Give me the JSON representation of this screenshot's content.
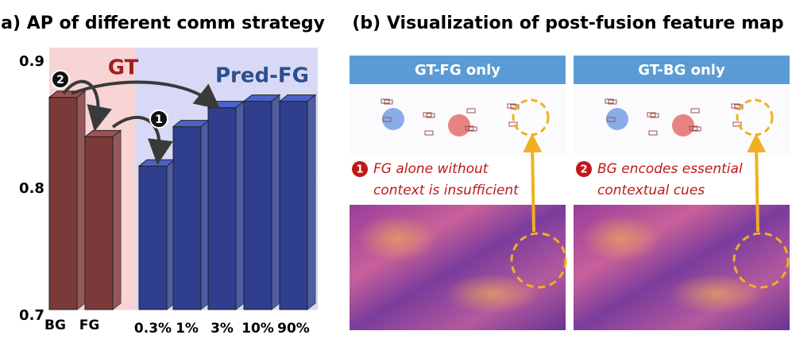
{
  "chart_data": {
    "type": "bar",
    "title": "(a) AP of different comm strategy",
    "categories": [
      "BG",
      "FG",
      "0.3%",
      "1%",
      "3%",
      "10%",
      "90%"
    ],
    "values": [
      0.872,
      0.841,
      0.818,
      0.849,
      0.864,
      0.869,
      0.869
    ],
    "colors": [
      "#7b3a3a",
      "#7b3a3a",
      "#2f3f8e",
      "#2f3f8e",
      "#2f3f8e",
      "#2f3f8e",
      "#2f3f8e"
    ],
    "ylim": [
      0.7,
      0.9
    ],
    "yticks": [
      0.7,
      0.8,
      0.9
    ],
    "groups": [
      {
        "label": "GT",
        "color": "#a0201e"
      },
      {
        "label": "Pred-FG",
        "color": "#2d4f8c"
      }
    ],
    "badges": [
      "2",
      "1"
    ]
  },
  "panel_b": {
    "title": "(b) Visualization of post-fusion feature map",
    "panels": [
      {
        "header": "GT-FG only",
        "badge": "1",
        "caption": [
          "FG alone without",
          "context is insufficient"
        ]
      },
      {
        "header": "GT-BG only",
        "badge": "2",
        "caption": [
          "BG encodes essential",
          "contextual cues"
        ]
      }
    ]
  }
}
